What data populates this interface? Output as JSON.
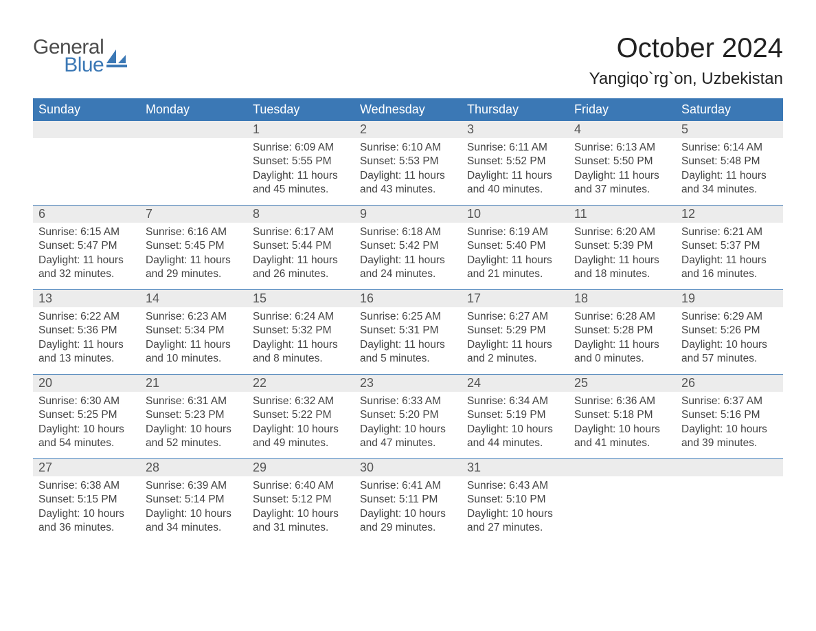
{
  "brand": {
    "name_part1": "General",
    "name_part2": "Blue",
    "color_general": "#4d4d4d",
    "color_blue": "#3b78b5",
    "icon_fill": "#3b78b5"
  },
  "title": "October 2024",
  "location": "Yangiqo`rg`on, Uzbekistan",
  "colors": {
    "header_bg": "#3b78b5",
    "header_text": "#ffffff",
    "daynum_bg": "#ececec",
    "week_divider": "#3b78b5",
    "body_text": "#444444",
    "page_bg": "#ffffff"
  },
  "fonts": {
    "title_size_pt": 40,
    "location_size_pt": 24,
    "dow_size_pt": 18,
    "daynum_size_pt": 18,
    "body_size_pt": 15.5,
    "family": "Arial"
  },
  "days_of_week": [
    "Sunday",
    "Monday",
    "Tuesday",
    "Wednesday",
    "Thursday",
    "Friday",
    "Saturday"
  ],
  "weeks": [
    [
      {
        "empty": true
      },
      {
        "empty": true
      },
      {
        "num": "1",
        "sunrise": "Sunrise: 6:09 AM",
        "sunset": "Sunset: 5:55 PM",
        "daylight": "Daylight: 11 hours and 45 minutes."
      },
      {
        "num": "2",
        "sunrise": "Sunrise: 6:10 AM",
        "sunset": "Sunset: 5:53 PM",
        "daylight": "Daylight: 11 hours and 43 minutes."
      },
      {
        "num": "3",
        "sunrise": "Sunrise: 6:11 AM",
        "sunset": "Sunset: 5:52 PM",
        "daylight": "Daylight: 11 hours and 40 minutes."
      },
      {
        "num": "4",
        "sunrise": "Sunrise: 6:13 AM",
        "sunset": "Sunset: 5:50 PM",
        "daylight": "Daylight: 11 hours and 37 minutes."
      },
      {
        "num": "5",
        "sunrise": "Sunrise: 6:14 AM",
        "sunset": "Sunset: 5:48 PM",
        "daylight": "Daylight: 11 hours and 34 minutes."
      }
    ],
    [
      {
        "num": "6",
        "sunrise": "Sunrise: 6:15 AM",
        "sunset": "Sunset: 5:47 PM",
        "daylight": "Daylight: 11 hours and 32 minutes."
      },
      {
        "num": "7",
        "sunrise": "Sunrise: 6:16 AM",
        "sunset": "Sunset: 5:45 PM",
        "daylight": "Daylight: 11 hours and 29 minutes."
      },
      {
        "num": "8",
        "sunrise": "Sunrise: 6:17 AM",
        "sunset": "Sunset: 5:44 PM",
        "daylight": "Daylight: 11 hours and 26 minutes."
      },
      {
        "num": "9",
        "sunrise": "Sunrise: 6:18 AM",
        "sunset": "Sunset: 5:42 PM",
        "daylight": "Daylight: 11 hours and 24 minutes."
      },
      {
        "num": "10",
        "sunrise": "Sunrise: 6:19 AM",
        "sunset": "Sunset: 5:40 PM",
        "daylight": "Daylight: 11 hours and 21 minutes."
      },
      {
        "num": "11",
        "sunrise": "Sunrise: 6:20 AM",
        "sunset": "Sunset: 5:39 PM",
        "daylight": "Daylight: 11 hours and 18 minutes."
      },
      {
        "num": "12",
        "sunrise": "Sunrise: 6:21 AM",
        "sunset": "Sunset: 5:37 PM",
        "daylight": "Daylight: 11 hours and 16 minutes."
      }
    ],
    [
      {
        "num": "13",
        "sunrise": "Sunrise: 6:22 AM",
        "sunset": "Sunset: 5:36 PM",
        "daylight": "Daylight: 11 hours and 13 minutes."
      },
      {
        "num": "14",
        "sunrise": "Sunrise: 6:23 AM",
        "sunset": "Sunset: 5:34 PM",
        "daylight": "Daylight: 11 hours and 10 minutes."
      },
      {
        "num": "15",
        "sunrise": "Sunrise: 6:24 AM",
        "sunset": "Sunset: 5:32 PM",
        "daylight": "Daylight: 11 hours and 8 minutes."
      },
      {
        "num": "16",
        "sunrise": "Sunrise: 6:25 AM",
        "sunset": "Sunset: 5:31 PM",
        "daylight": "Daylight: 11 hours and 5 minutes."
      },
      {
        "num": "17",
        "sunrise": "Sunrise: 6:27 AM",
        "sunset": "Sunset: 5:29 PM",
        "daylight": "Daylight: 11 hours and 2 minutes."
      },
      {
        "num": "18",
        "sunrise": "Sunrise: 6:28 AM",
        "sunset": "Sunset: 5:28 PM",
        "daylight": "Daylight: 11 hours and 0 minutes."
      },
      {
        "num": "19",
        "sunrise": "Sunrise: 6:29 AM",
        "sunset": "Sunset: 5:26 PM",
        "daylight": "Daylight: 10 hours and 57 minutes."
      }
    ],
    [
      {
        "num": "20",
        "sunrise": "Sunrise: 6:30 AM",
        "sunset": "Sunset: 5:25 PM",
        "daylight": "Daylight: 10 hours and 54 minutes."
      },
      {
        "num": "21",
        "sunrise": "Sunrise: 6:31 AM",
        "sunset": "Sunset: 5:23 PM",
        "daylight": "Daylight: 10 hours and 52 minutes."
      },
      {
        "num": "22",
        "sunrise": "Sunrise: 6:32 AM",
        "sunset": "Sunset: 5:22 PM",
        "daylight": "Daylight: 10 hours and 49 minutes."
      },
      {
        "num": "23",
        "sunrise": "Sunrise: 6:33 AM",
        "sunset": "Sunset: 5:20 PM",
        "daylight": "Daylight: 10 hours and 47 minutes."
      },
      {
        "num": "24",
        "sunrise": "Sunrise: 6:34 AM",
        "sunset": "Sunset: 5:19 PM",
        "daylight": "Daylight: 10 hours and 44 minutes."
      },
      {
        "num": "25",
        "sunrise": "Sunrise: 6:36 AM",
        "sunset": "Sunset: 5:18 PM",
        "daylight": "Daylight: 10 hours and 41 minutes."
      },
      {
        "num": "26",
        "sunrise": "Sunrise: 6:37 AM",
        "sunset": "Sunset: 5:16 PM",
        "daylight": "Daylight: 10 hours and 39 minutes."
      }
    ],
    [
      {
        "num": "27",
        "sunrise": "Sunrise: 6:38 AM",
        "sunset": "Sunset: 5:15 PM",
        "daylight": "Daylight: 10 hours and 36 minutes."
      },
      {
        "num": "28",
        "sunrise": "Sunrise: 6:39 AM",
        "sunset": "Sunset: 5:14 PM",
        "daylight": "Daylight: 10 hours and 34 minutes."
      },
      {
        "num": "29",
        "sunrise": "Sunrise: 6:40 AM",
        "sunset": "Sunset: 5:12 PM",
        "daylight": "Daylight: 10 hours and 31 minutes."
      },
      {
        "num": "30",
        "sunrise": "Sunrise: 6:41 AM",
        "sunset": "Sunset: 5:11 PM",
        "daylight": "Daylight: 10 hours and 29 minutes."
      },
      {
        "num": "31",
        "sunrise": "Sunrise: 6:43 AM",
        "sunset": "Sunset: 5:10 PM",
        "daylight": "Daylight: 10 hours and 27 minutes."
      },
      {
        "empty": true
      },
      {
        "empty": true
      }
    ]
  ]
}
